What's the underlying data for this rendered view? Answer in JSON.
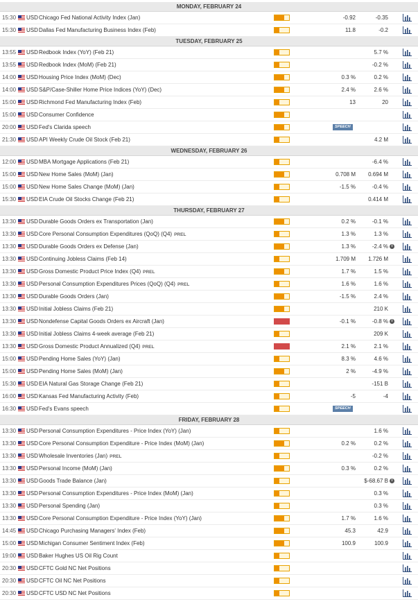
{
  "days": [
    {
      "title": "MONDAY, FEBRUARY 24",
      "rows": [
        {
          "time": "15:30",
          "currency": "USD",
          "event": "Chicago Fed National Activity Index (Jan)",
          "impact": "medium",
          "consensus": "-0.92",
          "previous": "-0.35"
        },
        {
          "time": "15:30",
          "currency": "USD",
          "event": "Dallas Fed Manufacturing Business Index (Feb)",
          "impact": "low",
          "consensus": "11.8",
          "previous": "-0.2"
        }
      ]
    },
    {
      "title": "TUESDAY, FEBRUARY 25",
      "rows": [
        {
          "time": "13:55",
          "currency": "USD",
          "event": "Redbook Index (YoY) (Feb 21)",
          "impact": "low",
          "previous": "5.7 %"
        },
        {
          "time": "13:55",
          "currency": "USD",
          "event": "Redbook Index (MoM) (Feb 21)",
          "impact": "low",
          "previous": "-0.2 %"
        },
        {
          "time": "14:00",
          "currency": "USD",
          "event": "Housing Price Index (MoM) (Dec)",
          "impact": "medium",
          "consensus": "0.3 %",
          "previous": "0.2 %"
        },
        {
          "time": "14:00",
          "currency": "USD",
          "event": "S&P/Case-Shiller Home Price Indices (YoY) (Dec)",
          "impact": "medium",
          "consensus": "2.4 %",
          "previous": "2.6 %"
        },
        {
          "time": "15:00",
          "currency": "USD",
          "event": "Richmond Fed Manufacturing Index (Feb)",
          "impact": "low",
          "consensus": "13",
          "previous": "20"
        },
        {
          "time": "15:00",
          "currency": "USD",
          "event": "Consumer Confidence",
          "impact": "medium"
        },
        {
          "time": "20:00",
          "currency": "USD",
          "event": "Fed's Clarida speech",
          "impact": "medium",
          "badge": "SPEECH"
        },
        {
          "time": "21:30",
          "currency": "USD",
          "event": "API Weekly Crude Oil Stock (Feb 21)",
          "impact": "low",
          "previous": "4.2 M"
        }
      ]
    },
    {
      "title": "WEDNESDAY, FEBRUARY 26",
      "rows": [
        {
          "time": "12:00",
          "currency": "USD",
          "event": "MBA Mortgage Applications (Feb 21)",
          "impact": "low",
          "previous": "-6.4 %"
        },
        {
          "time": "15:00",
          "currency": "USD",
          "event": "New Home Sales (MoM) (Jan)",
          "impact": "medium",
          "consensus": "0.708 M",
          "previous": "0.694 M"
        },
        {
          "time": "15:00",
          "currency": "USD",
          "event": "New Home Sales Change (MoM) (Jan)",
          "impact": "low",
          "consensus": "-1.5 %",
          "previous": "-0.4 %"
        },
        {
          "time": "15:30",
          "currency": "USD",
          "event": "EIA Crude Oil Stocks Change (Feb 21)",
          "impact": "low",
          "previous": "0.414 M"
        }
      ]
    },
    {
      "title": "THURSDAY, FEBRUARY 27",
      "rows": [
        {
          "time": "13:30",
          "currency": "USD",
          "event": "Durable Goods Orders ex Transportation (Jan)",
          "impact": "medium",
          "consensus": "0.2 %",
          "previous": "-0.1 %"
        },
        {
          "time": "13:30",
          "currency": "USD",
          "event": "Core Personal Consumption Expenditures (QoQ) (Q4)",
          "tag": "PREL",
          "impact": "low",
          "consensus": "1.3 %",
          "previous": "1.3 %"
        },
        {
          "time": "13:30",
          "currency": "USD",
          "event": "Durable Goods Orders ex Defense (Jan)",
          "impact": "medium",
          "consensus": "1.3 %",
          "previous": "-2.4 %",
          "revised": true
        },
        {
          "time": "13:30",
          "currency": "USD",
          "event": "Continuing Jobless Claims (Feb 14)",
          "impact": "low",
          "consensus": "1.709 M",
          "previous": "1.726 M"
        },
        {
          "time": "13:30",
          "currency": "USD",
          "event": "Gross Domestic Product Price Index (Q4)",
          "tag": "PREL",
          "impact": "medium",
          "consensus": "1.7 %",
          "previous": "1.5 %"
        },
        {
          "time": "13:30",
          "currency": "USD",
          "event": "Personal Consumption Expenditures Prices (QoQ) (Q4)",
          "tag": "PREL",
          "impact": "low",
          "consensus": "1.6 %",
          "previous": "1.6 %"
        },
        {
          "time": "13:30",
          "currency": "USD",
          "event": "Durable Goods Orders (Jan)",
          "impact": "medium",
          "consensus": "-1.5 %",
          "previous": "2.4 %"
        },
        {
          "time": "13:30",
          "currency": "USD",
          "event": "Initial Jobless Claims (Feb 21)",
          "impact": "medium",
          "previous": "210 K"
        },
        {
          "time": "13:30",
          "currency": "USD",
          "event": "Nondefense Capital Goods Orders ex Aircraft (Jan)",
          "impact": "high",
          "consensus": "-0.1 %",
          "previous": "-0.8 %",
          "revised": true
        },
        {
          "time": "13:30",
          "currency": "USD",
          "event": "Initial Jobless Claims 4-week average (Feb 21)",
          "impact": "low",
          "previous": "209 K"
        },
        {
          "time": "13:30",
          "currency": "USD",
          "event": "Gross Domestic Product Annualized (Q4)",
          "tag": "PREL",
          "impact": "high",
          "consensus": "2.1 %",
          "previous": "2.1 %"
        },
        {
          "time": "15:00",
          "currency": "USD",
          "event": "Pending Home Sales (YoY) (Jan)",
          "impact": "low",
          "consensus": "8.3 %",
          "previous": "4.6 %"
        },
        {
          "time": "15:00",
          "currency": "USD",
          "event": "Pending Home Sales (MoM) (Jan)",
          "impact": "medium",
          "consensus": "2 %",
          "previous": "-4.9 %"
        },
        {
          "time": "15:30",
          "currency": "USD",
          "event": "EIA Natural Gas Storage Change (Feb 21)",
          "impact": "low",
          "previous": "-151 B"
        },
        {
          "time": "16:00",
          "currency": "USD",
          "event": "Kansas Fed Manufacturing Activity (Feb)",
          "impact": "low",
          "consensus": "-5",
          "previous": "-4"
        },
        {
          "time": "16:30",
          "currency": "USD",
          "event": "Fed's Evans speech",
          "impact": "low",
          "badge": "SPEECH"
        }
      ]
    },
    {
      "title": "FRIDAY, FEBRUARY 28",
      "rows": [
        {
          "time": "13:30",
          "currency": "USD",
          "event": "Personal Consumption Expenditures - Price Index (YoY) (Jan)",
          "impact": "low",
          "previous": "1.6 %"
        },
        {
          "time": "13:30",
          "currency": "USD",
          "event": "Core Personal Consumption Expenditure - Price Index (MoM) (Jan)",
          "impact": "medium",
          "consensus": "0.2 %",
          "previous": "0.2 %"
        },
        {
          "time": "13:30",
          "currency": "USD",
          "event": "Wholesale Inventories (Jan)",
          "tag": "PREL",
          "impact": "low",
          "previous": "-0.2 %"
        },
        {
          "time": "13:30",
          "currency": "USD",
          "event": "Personal Income (MoM) (Jan)",
          "impact": "medium",
          "consensus": "0.3 %",
          "previous": "0.2 %"
        },
        {
          "time": "13:30",
          "currency": "USD",
          "event": "Goods Trade Balance (Jan)",
          "impact": "low",
          "previous": "$-68.67 B",
          "revised": true
        },
        {
          "time": "13:30",
          "currency": "USD",
          "event": "Personal Consumption Expenditures - Price Index (MoM) (Jan)",
          "impact": "low",
          "previous": "0.3 %"
        },
        {
          "time": "13:30",
          "currency": "USD",
          "event": "Personal Spending (Jan)",
          "impact": "low",
          "previous": "0.3 %"
        },
        {
          "time": "13:30",
          "currency": "USD",
          "event": "Core Personal Consumption Expenditure - Price Index (YoY) (Jan)",
          "impact": "medium",
          "consensus": "1.7 %",
          "previous": "1.6 %"
        },
        {
          "time": "14:45",
          "currency": "USD",
          "event": "Chicago Purchasing Managers' Index (Feb)",
          "impact": "medium",
          "consensus": "45.3",
          "previous": "42.9"
        },
        {
          "time": "15:00",
          "currency": "USD",
          "event": "Michigan Consumer Sentiment Index (Feb)",
          "impact": "medium",
          "consensus": "100.9",
          "previous": "100.9"
        },
        {
          "time": "19:00",
          "currency": "USD",
          "event": "Baker Hughes US Oil Rig Count",
          "impact": "low"
        },
        {
          "time": "20:30",
          "currency": "USD",
          "event": "CFTC Gold NC Net Positions",
          "impact": "low"
        },
        {
          "time": "20:30",
          "currency": "USD",
          "event": "CFTC Oil NC Net Positions",
          "impact": "low"
        },
        {
          "time": "20:30",
          "currency": "USD",
          "event": "CFTC USD NC Net Positions",
          "impact": "low"
        }
      ]
    }
  ]
}
